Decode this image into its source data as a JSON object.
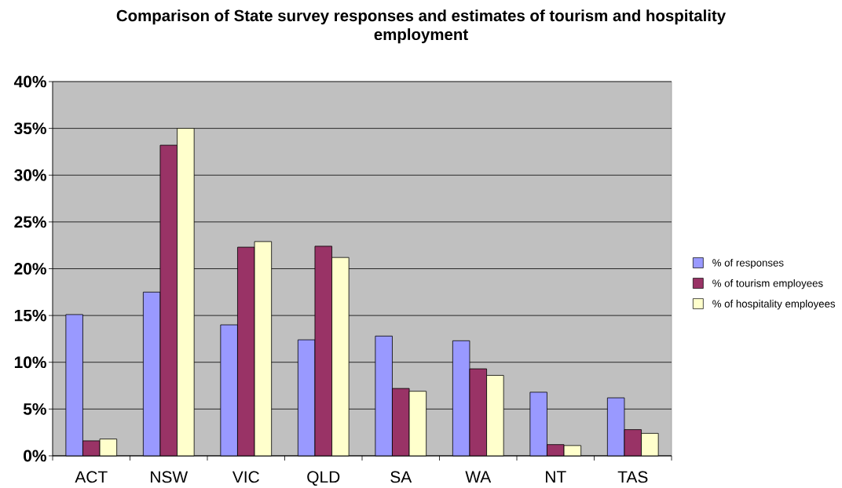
{
  "chart_data": {
    "type": "bar",
    "title": "Comparison of State survey responses and estimates of tourism and hospitality employment",
    "categories": [
      "ACT",
      "NSW",
      "VIC",
      "QLD",
      "SA",
      "WA",
      "NT",
      "TAS"
    ],
    "series": [
      {
        "name": "% of responses",
        "color": "#9999ff",
        "values": [
          15.1,
          17.5,
          14.0,
          12.4,
          12.8,
          12.3,
          6.8,
          6.2
        ]
      },
      {
        "name": "% of tourism employees",
        "color": "#993366",
        "values": [
          1.6,
          33.2,
          22.3,
          22.4,
          7.2,
          9.3,
          1.2,
          2.8
        ]
      },
      {
        "name": "% of hospitality employees",
        "color": "#ffffcc",
        "values": [
          1.8,
          35.0,
          22.9,
          21.2,
          6.9,
          8.6,
          1.1,
          2.4
        ]
      }
    ],
    "ylim": [
      0,
      40
    ],
    "yticks": [
      {
        "value": 0,
        "label": "0%"
      },
      {
        "value": 5,
        "label": "5%"
      },
      {
        "value": 10,
        "label": "10%"
      },
      {
        "value": 15,
        "label": "15%"
      },
      {
        "value": 20,
        "label": "20%"
      },
      {
        "value": 25,
        "label": "25%"
      },
      {
        "value": 30,
        "label": "30%"
      },
      {
        "value": 35,
        "label": "35%"
      },
      {
        "value": 40,
        "label": "40%"
      }
    ],
    "grid": "y",
    "legend": "right"
  }
}
